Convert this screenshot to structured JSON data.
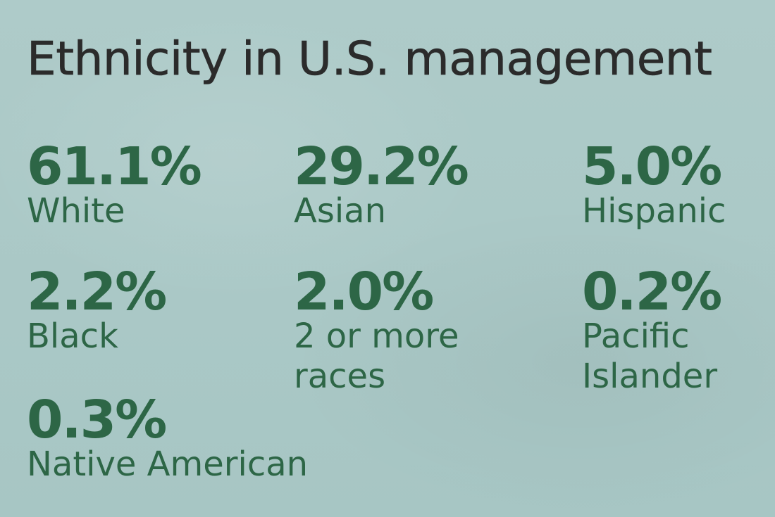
{
  "title": "Ethnicity in U.S. management",
  "colors": {
    "background": "#a9c8c6",
    "title": "#2b2b2b",
    "stat": "#2d6646"
  },
  "chart_data": {
    "type": "table",
    "title": "Ethnicity in U.S. management",
    "unit": "%",
    "categories": [
      "White",
      "Asian",
      "Hispanic",
      "Black",
      "2 or more races",
      "Pacific Islander",
      "Native American"
    ],
    "values": [
      61.1,
      29.2,
      5.0,
      2.2,
      2.0,
      0.2,
      0.3
    ]
  },
  "stats": [
    {
      "value": "61.1%",
      "label": [
        "White"
      ]
    },
    {
      "value": "29.2%",
      "label": [
        "Asian"
      ]
    },
    {
      "value": "5.0%",
      "label": [
        "Hispanic"
      ]
    },
    {
      "value": "2.2%",
      "label": [
        "Black"
      ]
    },
    {
      "value": "2.0%",
      "label": [
        "2 or more",
        "races"
      ]
    },
    {
      "value": "0.2%",
      "label": [
        "Pacific",
        "Islander"
      ]
    },
    {
      "value": "0.3%",
      "label": [
        "Native American"
      ]
    }
  ]
}
